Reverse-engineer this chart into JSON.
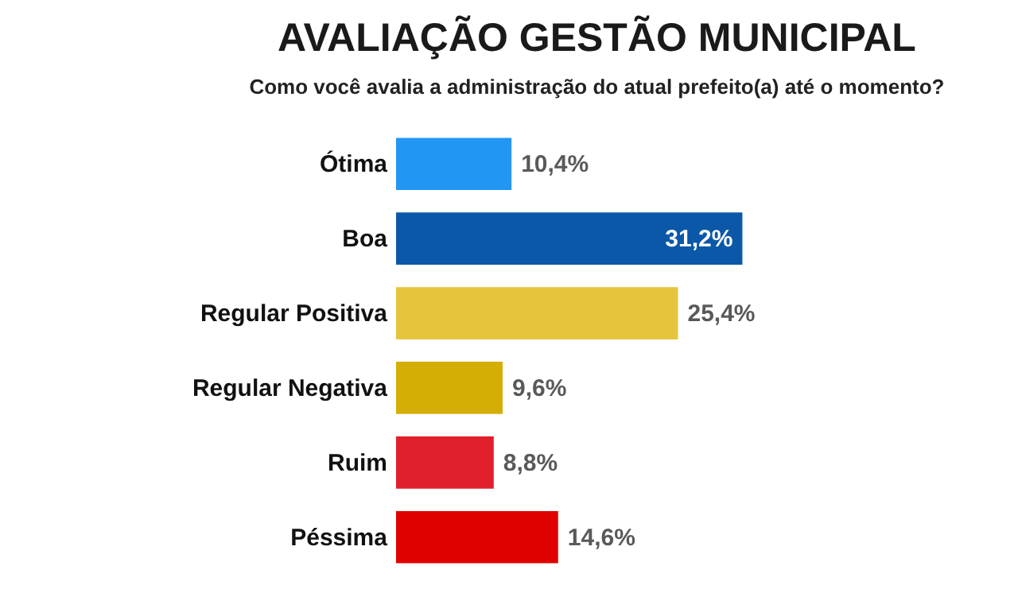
{
  "chart_data": {
    "type": "bar",
    "orientation": "horizontal",
    "title": "AVALIAÇÃO GESTÃO MUNICIPAL",
    "subtitle": "Como você avalia a administração do atual prefeito(a)  até o momento?",
    "categories": [
      "Ótima",
      "Boa",
      "Regular Positiva",
      "Regular Negativa",
      "Ruim",
      "Péssima"
    ],
    "values": [
      10.4,
      31.2,
      25.4,
      9.6,
      8.8,
      14.6
    ],
    "value_labels": [
      "10,4%",
      "31,2%",
      "25,4%",
      "9,6%",
      "8,8%",
      "14,6%"
    ],
    "colors": [
      "#2196f3",
      "#0b58a8",
      "#e6c43c",
      "#d4ae05",
      "#e0202c",
      "#e00000"
    ]
  }
}
